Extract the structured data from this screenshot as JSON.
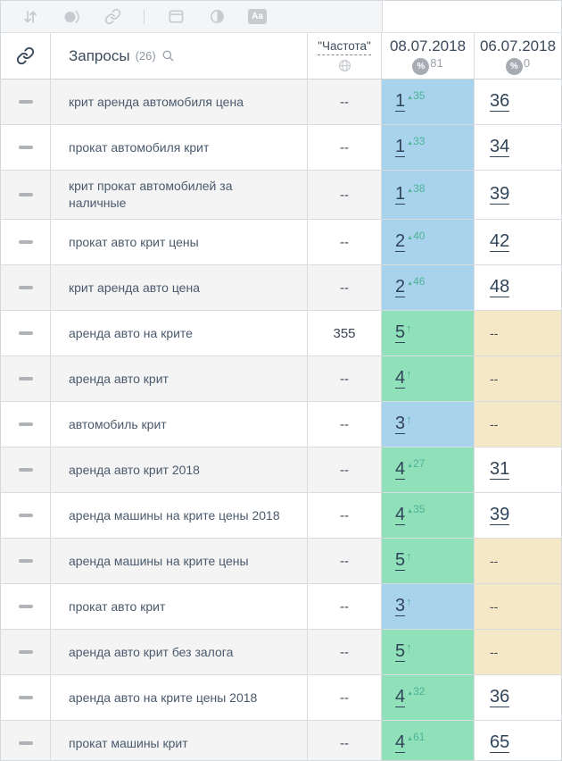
{
  "toolbar": {
    "icons": [
      "sort-icon",
      "phase-circle-icon",
      "link-icon",
      "separator",
      "window-icon",
      "contrast-icon",
      "font-settings-icon"
    ],
    "font_icon_label": "Aa"
  },
  "header": {
    "queries_label": "Запросы",
    "queries_count": "(26)",
    "frequency_label": "\"Частота\"",
    "dates": [
      {
        "label": "08.07.2018",
        "percent_symbol": "%",
        "percent_value": "81"
      },
      {
        "label": "06.07.2018",
        "percent_symbol": "%",
        "percent_value": "0"
      }
    ]
  },
  "colors": {
    "top3_bg": "#a9d3ed",
    "top10_bg": "#90e0ba",
    "nodata_bg": "#f5e8c6",
    "change_color": "#4db396",
    "row_stripe": "#f4f4f5",
    "accent_dark": "#2f4459"
  },
  "rows": [
    {
      "keyword": "крит аренда автомобиля цена",
      "frequency": "--",
      "position": "1",
      "change": "35",
      "highlight": "blue",
      "previous": "36"
    },
    {
      "keyword": "прокат автомобиля крит",
      "frequency": "--",
      "position": "1",
      "change": "33",
      "highlight": "blue",
      "previous": "34"
    },
    {
      "keyword": "крит прокат автомобилей за наличные",
      "frequency": "--",
      "position": "1",
      "change": "38",
      "highlight": "blue",
      "previous": "39"
    },
    {
      "keyword": "прокат авто крит цены",
      "frequency": "--",
      "position": "2",
      "change": "40",
      "highlight": "blue",
      "previous": "42"
    },
    {
      "keyword": "крит аренда авто цена",
      "frequency": "--",
      "position": "2",
      "change": "46",
      "highlight": "blue",
      "previous": "48"
    },
    {
      "keyword": "аренда авто на крите",
      "frequency": "355",
      "position": "5",
      "change": null,
      "highlight": "green",
      "previous": "--"
    },
    {
      "keyword": "аренда авто крит",
      "frequency": "--",
      "position": "4",
      "change": null,
      "highlight": "green",
      "previous": "--"
    },
    {
      "keyword": "автомобиль крит",
      "frequency": "--",
      "position": "3",
      "change": null,
      "highlight": "blue",
      "previous": "--"
    },
    {
      "keyword": "аренда авто крит 2018",
      "frequency": "--",
      "position": "4",
      "change": "27",
      "highlight": "green",
      "previous": "31"
    },
    {
      "keyword": "аренда машины на крите цены 2018",
      "frequency": "--",
      "position": "4",
      "change": "35",
      "highlight": "green",
      "previous": "39"
    },
    {
      "keyword": "аренда машины на крите цены",
      "frequency": "--",
      "position": "5",
      "change": null,
      "highlight": "green",
      "previous": "--"
    },
    {
      "keyword": "прокат авто крит",
      "frequency": "--",
      "position": "3",
      "change": null,
      "highlight": "blue",
      "previous": "--"
    },
    {
      "keyword": "аренда авто крит без залога",
      "frequency": "--",
      "position": "5",
      "change": null,
      "highlight": "green",
      "previous": "--"
    },
    {
      "keyword": "аренда авто на крите цены 2018",
      "frequency": "--",
      "position": "4",
      "change": "32",
      "highlight": "green",
      "previous": "36"
    },
    {
      "keyword": "прокат машины крит",
      "frequency": "--",
      "position": "4",
      "change": "61",
      "highlight": "green",
      "previous": "65"
    }
  ]
}
